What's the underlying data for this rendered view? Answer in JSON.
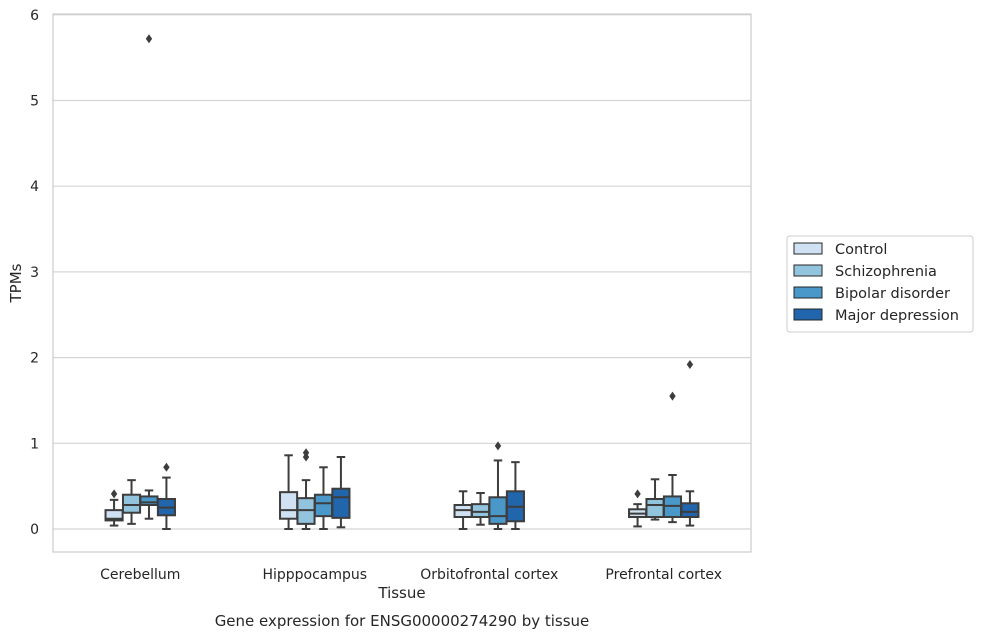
{
  "chart_data": {
    "type": "box",
    "title": "",
    "caption": "Gene expression for ENSG00000274290 by tissue",
    "xlabel": "Tissue",
    "ylabel": "TPMs",
    "ylim": [
      -0.28,
      6.02
    ],
    "yticks": [
      0,
      1,
      2,
      3,
      4,
      5,
      6
    ],
    "grid": true,
    "legend_position": "right",
    "categories": [
      "Cerebellum",
      "Hipppocampus",
      "Orbitofrontal cortex",
      "Prefrontal cortex"
    ],
    "series": [
      {
        "name": "Control",
        "color": "#cfe1f2",
        "boxes": [
          {
            "whislo": 0.04,
            "q1": 0.1,
            "med": 0.12,
            "q3": 0.22,
            "whishi": 0.34,
            "fliers": [
              0.41
            ]
          },
          {
            "whislo": 0.0,
            "q1": 0.12,
            "med": 0.22,
            "q3": 0.43,
            "whishi": 0.86,
            "fliers": []
          },
          {
            "whislo": 0.0,
            "q1": 0.14,
            "med": 0.22,
            "q3": 0.28,
            "whishi": 0.44,
            "fliers": []
          },
          {
            "whislo": 0.03,
            "q1": 0.14,
            "med": 0.18,
            "q3": 0.23,
            "whishi": 0.29,
            "fliers": [
              0.41
            ]
          }
        ]
      },
      {
        "name": "Schizophrenia",
        "color": "#93c4de",
        "boxes": [
          {
            "whislo": 0.06,
            "q1": 0.19,
            "med": 0.28,
            "q3": 0.4,
            "whishi": 0.57,
            "fliers": []
          },
          {
            "whislo": 0.0,
            "q1": 0.06,
            "med": 0.22,
            "q3": 0.36,
            "whishi": 0.57,
            "fliers": [
              0.84,
              0.89
            ]
          },
          {
            "whislo": 0.05,
            "q1": 0.14,
            "med": 0.2,
            "q3": 0.29,
            "whishi": 0.42,
            "fliers": []
          },
          {
            "whislo": 0.11,
            "q1": 0.14,
            "med": 0.28,
            "q3": 0.35,
            "whishi": 0.58,
            "fliers": []
          }
        ]
      },
      {
        "name": "Bipolar disorder",
        "color": "#4a98c9",
        "boxes": [
          {
            "whislo": 0.12,
            "q1": 0.28,
            "med": 0.31,
            "q3": 0.38,
            "whishi": 0.45,
            "fliers": [
              5.72
            ]
          },
          {
            "whislo": 0.0,
            "q1": 0.15,
            "med": 0.3,
            "q3": 0.4,
            "whishi": 0.72,
            "fliers": []
          },
          {
            "whislo": 0.0,
            "q1": 0.06,
            "med": 0.15,
            "q3": 0.37,
            "whishi": 0.8,
            "fliers": [
              0.97
            ]
          },
          {
            "whislo": 0.08,
            "q1": 0.14,
            "med": 0.27,
            "q3": 0.38,
            "whishi": 0.63,
            "fliers": [
              1.55
            ]
          }
        ]
      },
      {
        "name": "Major depression",
        "color": "#2166ac",
        "boxes": [
          {
            "whislo": 0.0,
            "q1": 0.16,
            "med": 0.25,
            "q3": 0.35,
            "whishi": 0.6,
            "fliers": [
              0.72
            ]
          },
          {
            "whislo": 0.02,
            "q1": 0.13,
            "med": 0.37,
            "q3": 0.47,
            "whishi": 0.84,
            "fliers": []
          },
          {
            "whislo": 0.0,
            "q1": 0.09,
            "med": 0.26,
            "q3": 0.44,
            "whishi": 0.78,
            "fliers": []
          },
          {
            "whislo": 0.04,
            "q1": 0.14,
            "med": 0.2,
            "q3": 0.3,
            "whishi": 0.44,
            "fliers": [
              1.92
            ]
          }
        ]
      }
    ]
  }
}
